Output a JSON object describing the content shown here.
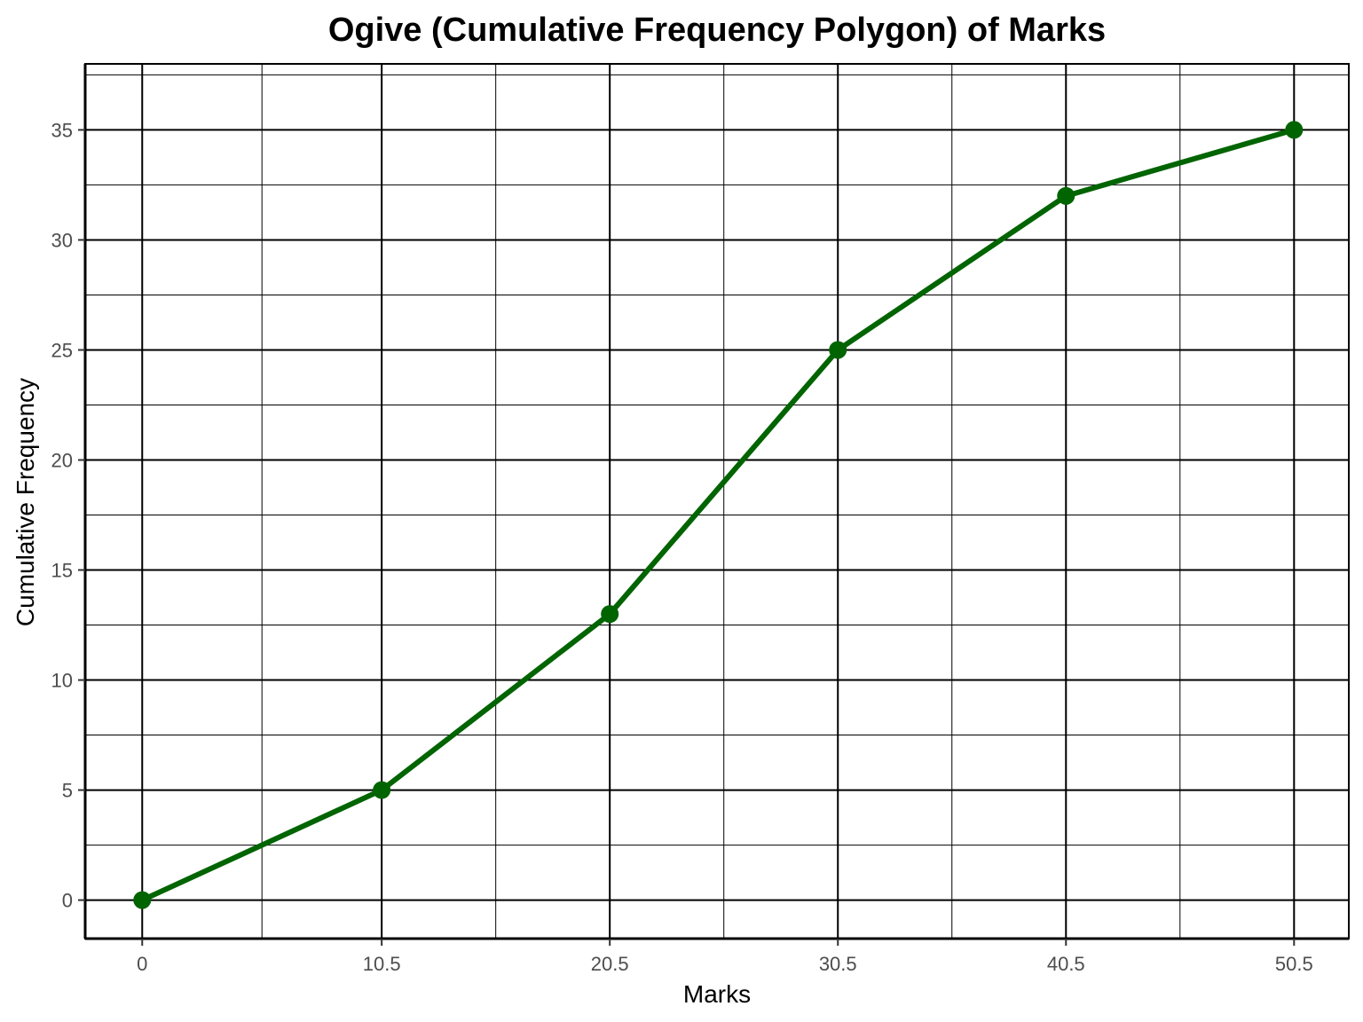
{
  "chart_data": {
    "type": "line",
    "title": "Ogive (Cumulative Frequency Polygon) of Marks",
    "xlabel": "Marks",
    "ylabel": "Cumulative Frequency",
    "x": [
      0,
      10.5,
      20.5,
      30.5,
      40.5,
      50.5
    ],
    "x_tick_labels": [
      "0",
      "10.5",
      "20.5",
      "30.5",
      "40.5",
      "50.5"
    ],
    "y_ticks": [
      0,
      5,
      10,
      15,
      20,
      25,
      30,
      35
    ],
    "y_tick_labels": [
      "0",
      "5",
      "10",
      "15",
      "20",
      "25",
      "30",
      "35"
    ],
    "series": [
      {
        "values": [
          0,
          5,
          13,
          25,
          32,
          35
        ]
      }
    ],
    "xlim": [
      -2.5,
      52.9
    ],
    "ylim": [
      -1.75,
      38
    ],
    "grid": true,
    "line_color": "#006400",
    "grid_color": "#000000"
  }
}
